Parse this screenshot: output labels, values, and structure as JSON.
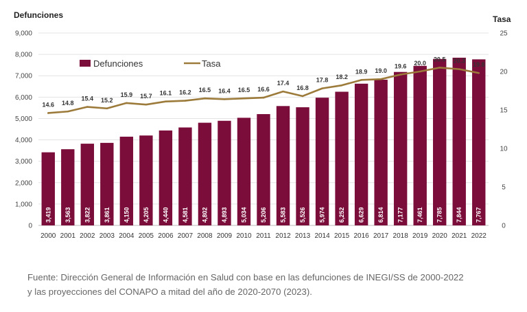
{
  "chart_data": {
    "type": "bar",
    "categories": [
      "2000",
      "2001",
      "2002",
      "2003",
      "2004",
      "2005",
      "2006",
      "2007",
      "2008",
      "2009",
      "2010",
      "2011",
      "2012",
      "2013",
      "2014",
      "2015",
      "2016",
      "2017",
      "2018",
      "2019",
      "2020",
      "2021",
      "2022"
    ],
    "series": [
      {
        "name": "Defunciones",
        "type": "bar",
        "axis": "left",
        "color": "#7b0d3a",
        "values": [
          3419,
          3563,
          3822,
          3861,
          4150,
          4205,
          4440,
          4581,
          4802,
          4893,
          5034,
          5206,
          5583,
          5526,
          5974,
          6252,
          6629,
          6814,
          7177,
          7461,
          7785,
          7844,
          7767
        ],
        "labels": [
          "3,419",
          "3,563",
          "3,822",
          "3,861",
          "4,150",
          "4,205",
          "4,440",
          "4,581",
          "4,802",
          "4,893",
          "5,034",
          "5,206",
          "5,583",
          "5,526",
          "5,974",
          "6,252",
          "6,629",
          "6,814",
          "7,177",
          "7,461",
          "7,785",
          "7,844",
          "7,767"
        ]
      },
      {
        "name": "Tasa",
        "type": "line",
        "axis": "right",
        "color": "#9c7a3a",
        "values": [
          14.6,
          14.8,
          15.4,
          15.2,
          15.9,
          15.7,
          16.1,
          16.2,
          16.5,
          16.4,
          16.5,
          16.6,
          17.4,
          16.8,
          17.8,
          18.2,
          18.9,
          19.0,
          19.6,
          20.0,
          20.5,
          20.3,
          19.8
        ],
        "labels": [
          "14.6",
          "14.8",
          "15.4",
          "15.2",
          "15.9",
          "15.7",
          "16.1",
          "16.2",
          "16.5",
          "16.4",
          "16.5",
          "16.6",
          "17.4",
          "16.8",
          "17.8",
          "18.2",
          "18.9",
          "19.0",
          "19.6",
          "20.0",
          "20.5",
          "20.3",
          "19.8"
        ]
      }
    ],
    "ylabel": "Defunciones",
    "ylabel_right": "Tasa",
    "ylim": [
      0,
      9000
    ],
    "ylim_right": [
      0,
      25
    ],
    "yticks": [
      "0",
      "1,000",
      "2,000",
      "3,000",
      "4,000",
      "5,000",
      "6,000",
      "7,000",
      "8,000",
      "9,000"
    ],
    "yticks_right": [
      "0",
      "5",
      "10",
      "15",
      "20",
      "25"
    ],
    "legend": {
      "placement": "top-left",
      "items": [
        "Defunciones",
        "Tasa"
      ]
    },
    "grid": true
  },
  "footnote": {
    "line1": "Fuente: Dirección General de Información en Salud con base en las defunciones de INEGI/SS de 2000-2022",
    "line2": "y las proyecciones del CONAPO a mitad del año de 2020-2070 (2023)."
  }
}
